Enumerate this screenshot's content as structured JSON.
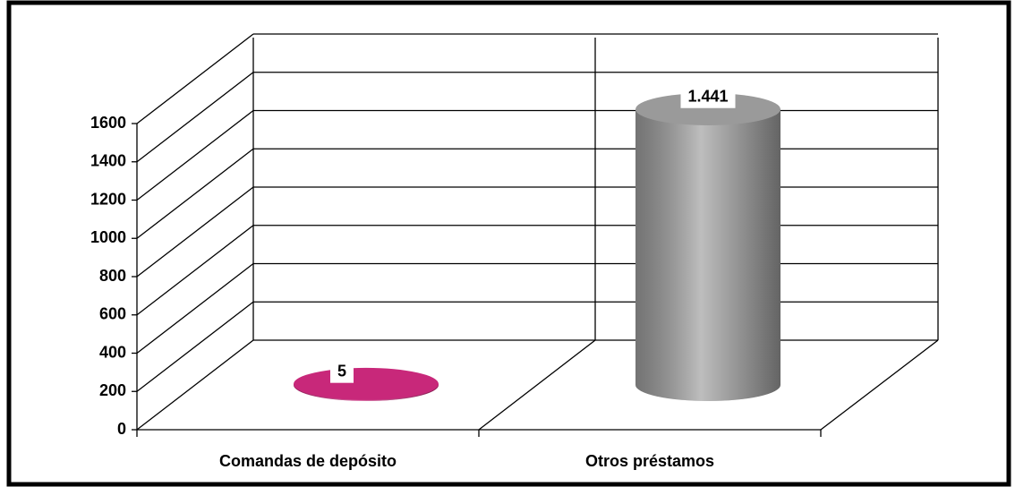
{
  "chart_data": {
    "type": "bar3d",
    "categories": [
      "Comandas de depósito",
      "Otros préstamos"
    ],
    "values": [
      5,
      1441
    ],
    "value_labels": [
      "5",
      "1.441"
    ],
    "colors": [
      "#c8287a",
      "#9a9a9a"
    ],
    "ylim": [
      0,
      1600
    ],
    "yticks": [
      0,
      200,
      400,
      600,
      800,
      1000,
      1200,
      1400,
      1600
    ],
    "grid": true
  }
}
